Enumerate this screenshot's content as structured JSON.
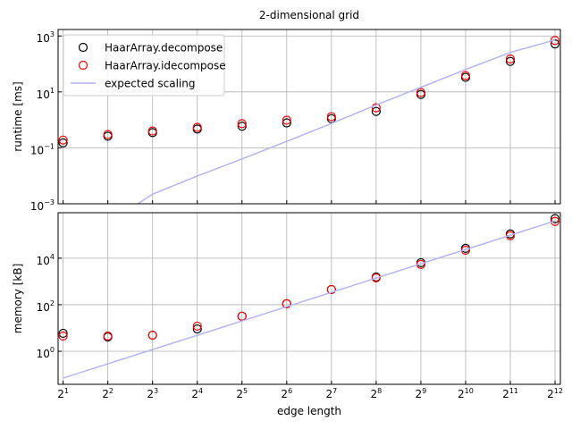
{
  "chart_data": [
    {
      "type": "scatter",
      "title": "2-dimensional grid",
      "ylabel": "runtime [ms]",
      "log_x": true,
      "log_y": true,
      "grid": true,
      "legend": "upper left",
      "xlim": [
        1.85,
        4450
      ],
      "ylim": [
        0.001,
        1700
      ],
      "xticks": [
        2,
        4,
        8,
        16,
        32,
        64,
        128,
        256,
        512,
        1024,
        2048,
        4096
      ],
      "yticks": [
        {
          "value": 0.001,
          "label": "10^−3"
        },
        {
          "value": 0.1,
          "label": "10^−1"
        },
        {
          "value": 10,
          "label": "10^1"
        },
        {
          "value": 1000,
          "label": "10^3"
        }
      ],
      "series": [
        {
          "name": "HaarArray.decompose",
          "color": "#000000",
          "kind": "marker",
          "x": [
            2,
            4,
            8,
            16,
            32,
            64,
            128,
            256,
            512,
            1024,
            2048,
            4096
          ],
          "values": [
            0.15,
            0.26,
            0.35,
            0.47,
            0.59,
            0.78,
            1.1,
            2.0,
            8.1,
            33,
            123,
            520
          ]
        },
        {
          "name": "HaarArray.idecompose",
          "color": "#ff0000",
          "kind": "marker",
          "x": [
            2,
            4,
            8,
            16,
            32,
            64,
            128,
            256,
            512,
            1024,
            2048,
            4096
          ],
          "values": [
            0.19,
            0.3,
            0.4,
            0.54,
            0.73,
            0.97,
            1.3,
            2.7,
            9.5,
            38,
            150,
            690
          ]
        },
        {
          "name": "expected scaling",
          "color": "#b4b4f0",
          "kind": "line",
          "x": [
            4,
            8,
            16,
            32,
            64,
            128,
            256,
            512,
            1024,
            2048,
            4096
          ],
          "values": [
            0.0002,
            0.0022,
            0.0098,
            0.04,
            0.17,
            0.74,
            3.4,
            14.5,
            63,
            257,
            720
          ]
        }
      ]
    },
    {
      "type": "scatter",
      "xlabel": "edge length",
      "ylabel": "memory [kB]",
      "log_x": true,
      "log_y": true,
      "grid": true,
      "xlim": [
        1.85,
        4450
      ],
      "ylim": [
        0.038,
        900000
      ],
      "xticks": [
        {
          "value": 2,
          "label": "2^1"
        },
        {
          "value": 4,
          "label": "2^2"
        },
        {
          "value": 8,
          "label": "2^3"
        },
        {
          "value": 16,
          "label": "2^4"
        },
        {
          "value": 32,
          "label": "2^5"
        },
        {
          "value": 64,
          "label": "2^6"
        },
        {
          "value": 128,
          "label": "2^7"
        },
        {
          "value": 256,
          "label": "2^8"
        },
        {
          "value": 512,
          "label": "2^9"
        },
        {
          "value": 1024,
          "label": "2^10"
        },
        {
          "value": 2048,
          "label": "2^11"
        },
        {
          "value": 4096,
          "label": "2^12"
        }
      ],
      "yticks": [
        {
          "value": 1,
          "label": "10^0"
        },
        {
          "value": 100,
          "label": "10^2"
        },
        {
          "value": 10000,
          "label": "10^4"
        }
      ],
      "series": [
        {
          "color": "#000000",
          "kind": "marker",
          "x": [
            2,
            4,
            8,
            16,
            32,
            64,
            128,
            256,
            512,
            1024,
            2048,
            4096
          ],
          "values": [
            5.9,
            4.1,
            4.9,
            9.1,
            32,
            110,
            450,
            1550,
            6400,
            26500,
            110000,
            500000
          ]
        },
        {
          "color": "#ff0000",
          "kind": "marker",
          "x": [
            2,
            4,
            8,
            16,
            32,
            64,
            128,
            256,
            512,
            1024,
            2048,
            4096
          ],
          "values": [
            4.5,
            4.5,
            4.9,
            12,
            32,
            110,
            450,
            1430,
            5400,
            22000,
            92000,
            380000
          ]
        },
        {
          "color": "#b4b4f0",
          "kind": "line",
          "x": [
            2,
            4096
          ],
          "values": [
            0.07,
            400000
          ]
        }
      ]
    }
  ]
}
